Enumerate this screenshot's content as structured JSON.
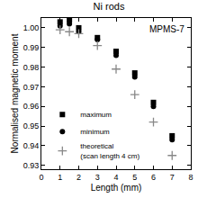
{
  "chart_data": {
    "type": "scatter",
    "title": "Ni rods",
    "x_label": "Length (mm)",
    "y_label": "Normalised magnetic moment",
    "annotations": [
      "MPMS-7"
    ],
    "series": [
      {
        "name": "maximum",
        "color": "#000000",
        "marker": "square",
        "x": [
          1,
          1.5,
          2,
          3,
          4,
          5,
          6,
          7
        ],
        "values": [
          1.003,
          1.004,
          1.0,
          0.995,
          0.988,
          0.977,
          0.962,
          0.945
        ]
      },
      {
        "name": "minimum",
        "color": "#000000",
        "marker": "circle",
        "x": [
          1,
          1.5,
          2,
          3,
          4,
          5,
          6,
          7
        ],
        "values": [
          1.001,
          1.002,
          0.998,
          0.994,
          0.986,
          0.975,
          0.96,
          0.943
        ]
      },
      {
        "name": "theoretical\n(scan length 4 cm)",
        "color": "#888888",
        "marker": "plus",
        "x": [
          1,
          1.5,
          2,
          3,
          4,
          5,
          6,
          7
        ],
        "values": [
          0.999,
          0.998,
          0.997,
          0.991,
          0.979,
          0.966,
          0.952,
          0.935
        ]
      }
    ],
    "xlim": [
      0,
      8
    ],
    "xticks": [
      0,
      1,
      2,
      3,
      4,
      5,
      6,
      7,
      8
    ],
    "ylim": [
      0.928,
      1.005
    ],
    "yticks": [
      0.93,
      0.94,
      0.95,
      0.96,
      0.97,
      0.98,
      0.99,
      {
        "value": 1,
        "label": "1.00"
      }
    ],
    "grid": false,
    "legend": "lower left"
  }
}
